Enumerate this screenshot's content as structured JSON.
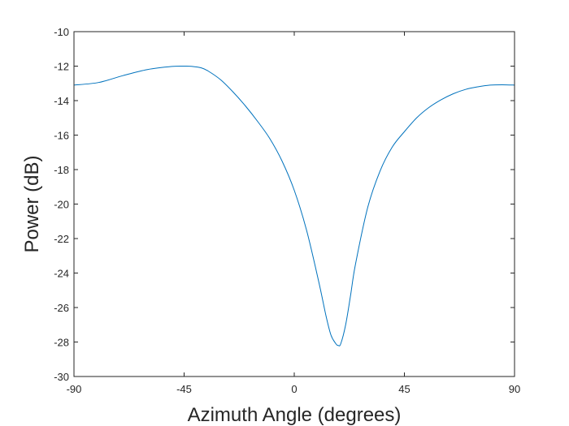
{
  "chart_data": {
    "type": "line",
    "title": "",
    "xlabel": "Azimuth Angle (degrees)",
    "ylabel": "Power (dB)",
    "xlim": [
      -90,
      90
    ],
    "ylim": [
      -30,
      -10
    ],
    "xticks": [
      -90,
      -45,
      0,
      45,
      90
    ],
    "xtick_labels": [
      "-90",
      "-45",
      "0",
      "45",
      "90"
    ],
    "yticks": [
      -30,
      -28,
      -26,
      -24,
      -22,
      -20,
      -18,
      -16,
      -14,
      -12,
      -10
    ],
    "ytick_labels": [
      "-30",
      "-28",
      "-26",
      "-24",
      "-22",
      "-20",
      "-18",
      "-16",
      "-14",
      "-12",
      "-10"
    ],
    "grid": false,
    "series": [
      {
        "name": "Power",
        "color": "#0072BD",
        "x": [
          -90,
          -80,
          -70,
          -60,
          -50,
          -45,
          -42,
          -38,
          -35,
          -30,
          -25,
          -20,
          -15,
          -10,
          -5,
          0,
          5,
          10,
          13,
          15,
          17,
          18,
          19,
          21,
          23,
          25,
          30,
          35,
          40,
          45,
          50,
          55,
          60,
          65,
          70,
          75,
          80,
          85,
          90
        ],
        "y": [
          -13.1,
          -12.95,
          -12.55,
          -12.2,
          -12.02,
          -12.0,
          -12.01,
          -12.1,
          -12.3,
          -12.8,
          -13.5,
          -14.3,
          -15.2,
          -16.2,
          -17.5,
          -19.2,
          -21.5,
          -24.5,
          -26.5,
          -27.6,
          -28.1,
          -28.2,
          -28.1,
          -27.0,
          -25.3,
          -23.5,
          -20.2,
          -18.1,
          -16.7,
          -15.8,
          -15.0,
          -14.4,
          -13.95,
          -13.6,
          -13.35,
          -13.2,
          -13.1,
          -13.08,
          -13.1
        ]
      }
    ]
  }
}
